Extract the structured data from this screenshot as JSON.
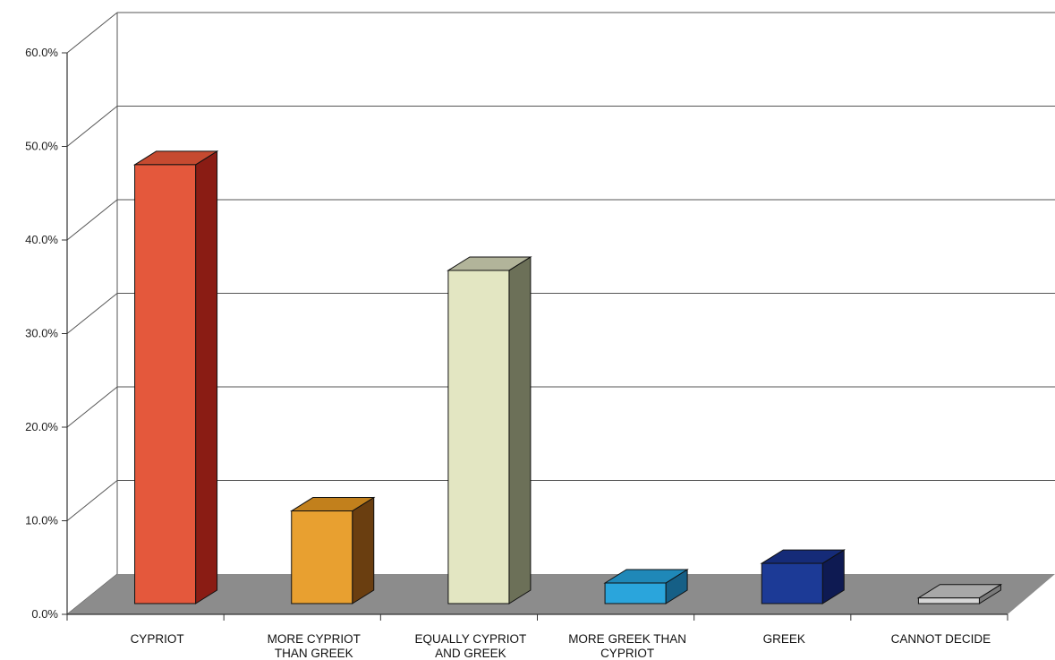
{
  "chart_data": {
    "type": "bar",
    "style": "3d-column",
    "categories": [
      [
        "CYPRIOT"
      ],
      [
        "MORE CYPRIOT",
        "THAN GREEK"
      ],
      [
        "EQUALLY CYPRIOT",
        "AND GREEK"
      ],
      [
        "MORE GREEK THAN",
        "CYPRIOT"
      ],
      [
        "GREEK"
      ],
      [
        "CANNOT DECIDE"
      ]
    ],
    "values": [
      46.9,
      9.9,
      35.6,
      2.2,
      4.3,
      0.6
    ],
    "yticks": [
      "0.0%",
      "10.0%",
      "20.0%",
      "30.0%",
      "40.0%",
      "50.0%",
      "60.0%"
    ],
    "ylim": [
      0,
      60
    ],
    "grid": true,
    "legend": "none",
    "colors": {
      "front": [
        "#e4583c",
        "#e8a030",
        "#e3e6c2",
        "#2aa5dc",
        "#1c3a96",
        "#d6d6d6"
      ],
      "side": [
        "#8a1c14",
        "#6a3e10",
        "#6c7058",
        "#155f86",
        "#0e1a52",
        "#7a7a7a"
      ],
      "top": [
        "#c64a30",
        "#c2801c",
        "#b2b49a",
        "#1f88b8",
        "#152b78",
        "#a8a8a8"
      ],
      "floor": "#8c8c8c",
      "grid": "#555555"
    }
  }
}
